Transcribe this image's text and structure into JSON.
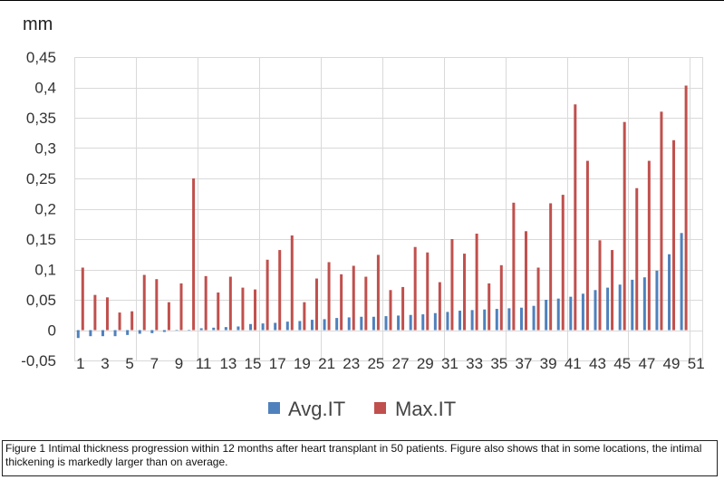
{
  "chart_data": {
    "type": "bar",
    "unit_label": "mm",
    "ylim": [
      -0.05,
      0.45
    ],
    "yticks": [
      "-0,05",
      "0",
      "0,05",
      "0,1",
      "0,15",
      "0,2",
      "0,25",
      "0,3",
      "0,35",
      "0,4",
      "0,45"
    ],
    "xticks": [
      "1",
      "3",
      "5",
      "7",
      "9",
      "11",
      "13",
      "15",
      "17",
      "19",
      "21",
      "23",
      "25",
      "27",
      "29",
      "31",
      "33",
      "35",
      "37",
      "39",
      "41",
      "43",
      "45",
      "47",
      "49",
      "51"
    ],
    "categories": [
      1,
      2,
      3,
      4,
      5,
      6,
      7,
      8,
      9,
      10,
      11,
      12,
      13,
      14,
      15,
      16,
      17,
      18,
      19,
      20,
      21,
      22,
      23,
      24,
      25,
      26,
      27,
      28,
      29,
      30,
      31,
      32,
      33,
      34,
      35,
      36,
      37,
      38,
      39,
      40,
      41,
      42,
      43,
      44,
      45,
      46,
      47,
      48,
      49,
      50
    ],
    "grid": true,
    "legend_position": "bottom",
    "series": [
      {
        "name": "Avg.IT",
        "color": "#4f81bd",
        "values": [
          -0.013,
          -0.01,
          -0.01,
          -0.01,
          -0.008,
          -0.006,
          -0.005,
          -0.003,
          0.0,
          0.0,
          0.003,
          0.004,
          0.005,
          0.006,
          0.01,
          0.011,
          0.012,
          0.014,
          0.015,
          0.017,
          0.018,
          0.02,
          0.021,
          0.022,
          0.022,
          0.023,
          0.024,
          0.025,
          0.026,
          0.028,
          0.03,
          0.032,
          0.033,
          0.034,
          0.035,
          0.036,
          0.037,
          0.04,
          0.05,
          0.052,
          0.055,
          0.06,
          0.066,
          0.07,
          0.075,
          0.083,
          0.087,
          0.098,
          0.125,
          0.16
        ]
      },
      {
        "name": "Max.IT",
        "color": "#c0504d",
        "values": [
          0.103,
          0.058,
          0.054,
          0.029,
          0.031,
          0.091,
          0.084,
          0.046,
          0.077,
          0.25,
          0.089,
          0.062,
          0.088,
          0.07,
          0.067,
          0.116,
          0.132,
          0.156,
          0.046,
          0.085,
          0.112,
          0.092,
          0.106,
          0.088,
          0.124,
          0.066,
          0.071,
          0.137,
          0.128,
          0.079,
          0.15,
          0.126,
          0.159,
          0.077,
          0.107,
          0.21,
          0.163,
          0.103,
          0.209,
          0.223,
          0.372,
          0.279,
          0.148,
          0.132,
          0.343,
          0.234,
          0.279,
          0.36,
          0.313,
          0.403
        ]
      }
    ]
  },
  "caption": "Figure 1 Intimal thickness progression within 12 months after heart transplant in 50 patients. Figure also shows that in some locations, the intimal thickening is markedly larger than on average."
}
